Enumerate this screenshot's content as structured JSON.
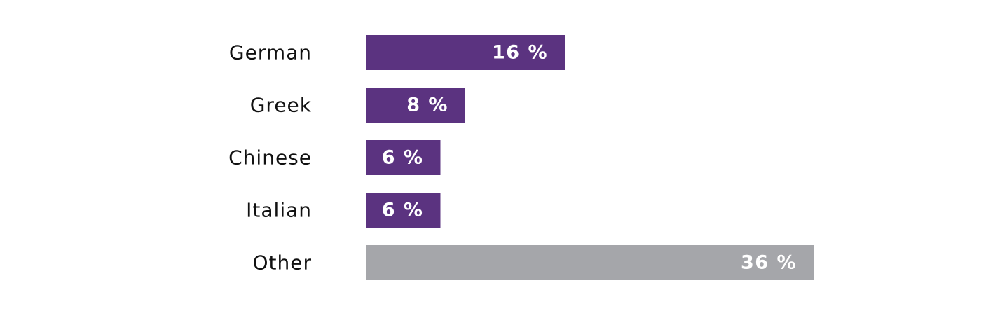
{
  "chart_data": {
    "type": "bar",
    "orientation": "horizontal",
    "categories": [
      "German",
      "Greek",
      "Chinese",
      "Italian",
      "Other"
    ],
    "values": [
      16,
      8,
      6,
      6,
      36
    ],
    "value_labels": [
      "16 %",
      "8 %",
      "6 %",
      "6 %",
      "36 %"
    ],
    "colors": [
      "#5b3380",
      "#5b3380",
      "#5b3380",
      "#5b3380",
      "#a5a6aa"
    ],
    "title": "",
    "xlabel": "",
    "ylabel": "",
    "grid": false,
    "legend": "none"
  }
}
